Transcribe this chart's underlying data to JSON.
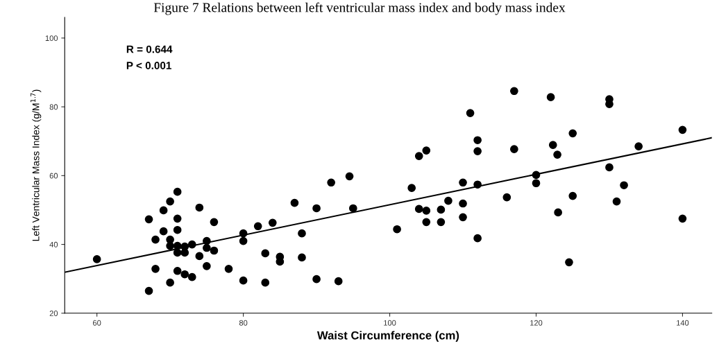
{
  "chart_data": {
    "type": "scatter",
    "title": "Figure 7 Relations between left ventricular mass index and body mass index",
    "xlabel": "Waist Circumference (cm)",
    "ylabel": "Left Ventricular Mass Index (g/M$^{1.7}$)",
    "annotations": [
      "R = 0.644",
      "P < 0.001"
    ],
    "xlim": [
      55.6,
      144
    ],
    "ylim": [
      20,
      106
    ],
    "xticks": [
      60,
      80,
      100,
      120,
      140
    ],
    "yticks": [
      20,
      40,
      60,
      80,
      100
    ],
    "grid": false,
    "marker": "circle",
    "series": [
      {
        "color": "#000000",
        "x": [
          60,
          67.1,
          67.1,
          68,
          68,
          69.1,
          69.1,
          70,
          70,
          70,
          70,
          71,
          71,
          71,
          71,
          71,
          71,
          72,
          72,
          72,
          73,
          73,
          74,
          74,
          75,
          75,
          75,
          76,
          76,
          78,
          80,
          80,
          80,
          82,
          83,
          83,
          84,
          85,
          85,
          87,
          88,
          88,
          90,
          90,
          92,
          93,
          94.5,
          95,
          101,
          103,
          104,
          105,
          104,
          105,
          105,
          107,
          107,
          108,
          110,
          110,
          110,
          111,
          112,
          112,
          112,
          112,
          117,
          122,
          130,
          130,
          125,
          117,
          122.3,
          122.9,
          140,
          134,
          120,
          120,
          130,
          132,
          116,
          125,
          131,
          123,
          140,
          124.5
        ],
        "values": [
          35.7,
          26.5,
          47.3,
          41.4,
          32.9,
          49.9,
          43.8,
          52.5,
          41.4,
          39.6,
          28.9,
          55.3,
          47.5,
          44.2,
          39.6,
          37.6,
          32.3,
          39.4,
          37.6,
          31.3,
          40,
          30.5,
          50.7,
          36.6,
          41,
          39,
          33.7,
          46.5,
          38.2,
          32.9,
          43.2,
          41,
          29.5,
          45.3,
          37.4,
          28.9,
          46.3,
          36.4,
          35,
          52.1,
          43.2,
          36.2,
          50.5,
          29.9,
          58,
          29.3,
          59.8,
          50.5,
          44.4,
          56.4,
          65.7,
          67.3,
          50.3,
          49.8,
          46.5,
          50.1,
          46.5,
          52.7,
          58,
          51.9,
          47.9,
          78.2,
          70.3,
          67.1,
          57.4,
          41.8,
          84.6,
          82.8,
          82.2,
          80.8,
          72.3,
          67.7,
          68.9,
          66.1,
          73.3,
          68.5,
          60.2,
          57.8,
          62.4,
          57.2,
          53.7,
          54.1,
          52.5,
          49.3,
          47.5,
          34.8
        ]
      },
      {
        "type": "line",
        "color": "#000000",
        "x": [
          55.6,
          144
        ],
        "values": [
          31.9,
          71
        ],
        "marker": "none",
        "line_style": "solid"
      }
    ]
  }
}
